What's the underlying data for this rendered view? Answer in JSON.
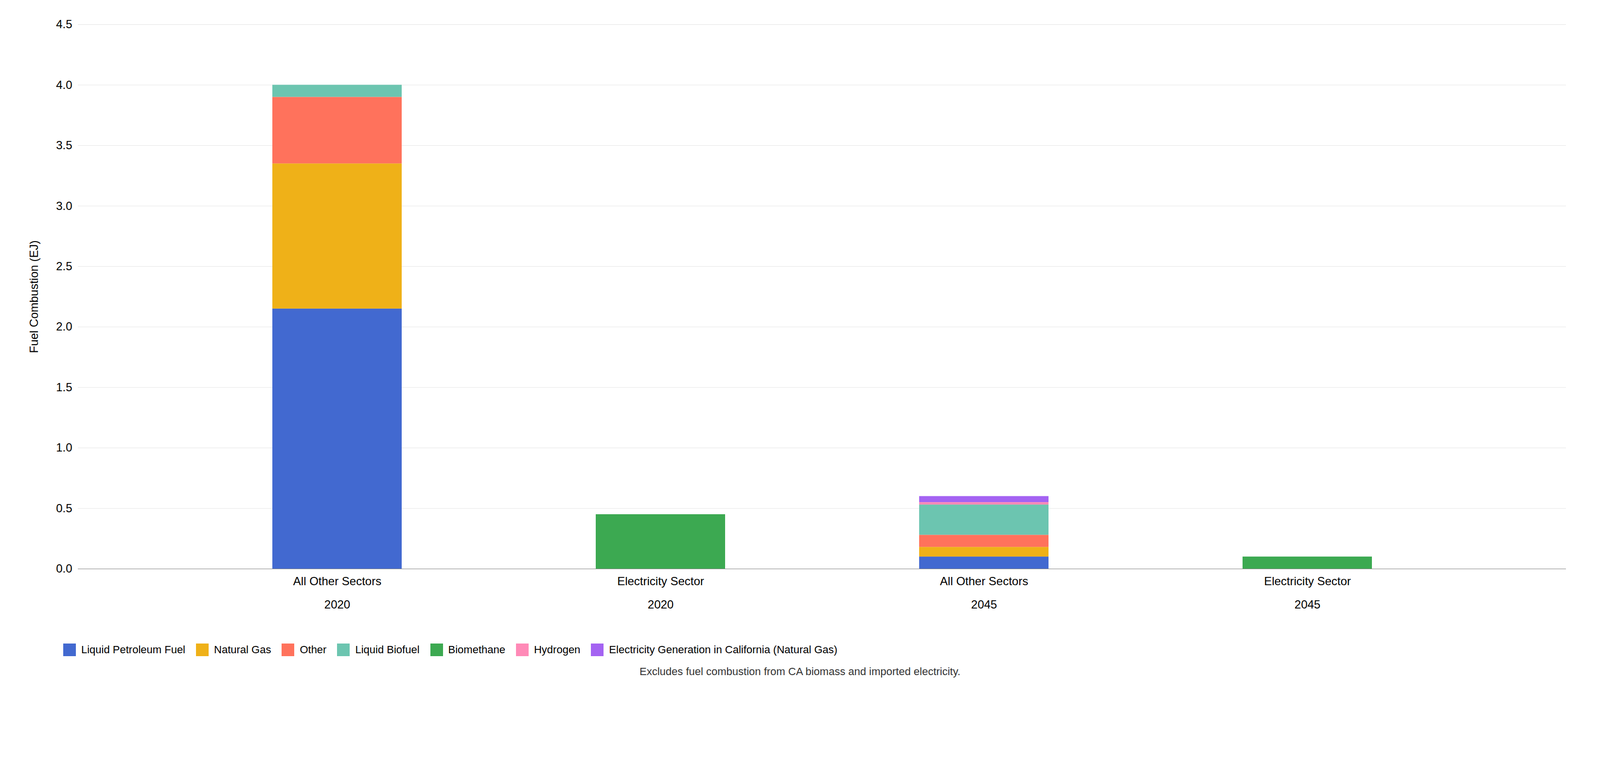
{
  "chart_data": {
    "type": "bar",
    "stacked": true,
    "categories": [
      "All Other Sectors\n\n2020",
      "Electricity Sector\n\n2020",
      "All Other Sectors\n\n2045",
      "Electricity Sector\n\n2045"
    ],
    "series": [
      {
        "name": "Liquid Petroleum Fuel",
        "values": [
          2.15,
          0.0,
          0.1,
          0.0
        ]
      },
      {
        "name": "Natural Gas",
        "values": [
          1.2,
          0.0,
          0.08,
          0.0
        ]
      },
      {
        "name": "Other",
        "values": [
          0.55,
          0.0,
          0.1,
          0.0
        ]
      },
      {
        "name": "Liquid Biofuel",
        "values": [
          0.1,
          0.0,
          0.25,
          0.0
        ]
      },
      {
        "name": "Biomethane",
        "values": [
          0.0,
          0.45,
          0.0,
          0.1
        ]
      },
      {
        "name": "Hydrogen",
        "values": [
          0.0,
          0.0,
          0.02,
          0.0
        ]
      },
      {
        "name": "Electricity Generation in California (Natural Gas)",
        "values": [
          0.0,
          0.0,
          0.05,
          0.0
        ]
      }
    ],
    "ylabel": "Fuel Combustion (EJ)",
    "ylim": [
      0,
      4.5
    ],
    "yticks": [
      {
        "value": 0,
        "label": "0.0"
      },
      0.5,
      {
        "value": 1,
        "label": "1.0"
      },
      1.5,
      {
        "value": 2,
        "label": "2.0"
      },
      2.5,
      {
        "value": 3,
        "label": "3.0"
      },
      3.5,
      {
        "value": 4,
        "label": "4.0"
      },
      4.5
    ],
    "grid": true,
    "legend": "bottom",
    "annotations": [
      "Excludes fuel combustion from CA biomass and imported electricity."
    ]
  }
}
